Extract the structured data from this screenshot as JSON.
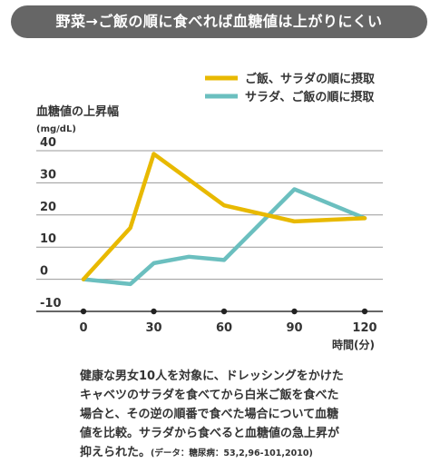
{
  "title": "野菜→ご飯の順に食べれば血糖値は上がりにくい",
  "chart_data": {
    "type": "line",
    "ylabel": "血糖値の上昇幅",
    "yunit": "(mg/dL)",
    "xlabel": "時間(分)",
    "x": [
      0,
      10,
      20,
      30,
      40,
      50,
      60,
      70,
      80,
      90,
      100,
      110,
      120
    ],
    "xticks": [
      0,
      30,
      60,
      90,
      120
    ],
    "yticks": [
      40,
      30,
      20,
      10,
      0,
      -10
    ],
    "ylim": [
      -10,
      40
    ],
    "xlim": [
      0,
      120
    ],
    "grid": true,
    "legend": "top-right",
    "series": [
      {
        "name": "ご飯、サラダの順に摂取",
        "color": "#e8b900",
        "x": [
          0,
          20,
          30,
          60,
          90,
          120
        ],
        "values": [
          0,
          16,
          39,
          23,
          18,
          19
        ]
      },
      {
        "name": "サラダ、ご飯の順に摂取",
        "color": "#6bbfbf",
        "x": [
          0,
          20,
          30,
          45,
          60,
          90,
          120
        ],
        "values": [
          0,
          -1.5,
          5,
          7,
          6,
          28,
          19
        ]
      }
    ]
  },
  "caption": {
    "line1": "健康な男女10人を対象に、ドレッシングをかけた",
    "line2": "キャベツのサラダを食べてから白米ご飯を食べた",
    "line3": "場合と、その逆の順番で食べた場合について血糖",
    "line4": "値を比較。サラダから食べると血糖値の急上昇が",
    "line5": "抑えられた。",
    "note": "(データ：糖尿病：53,2,96-101,2010)"
  }
}
